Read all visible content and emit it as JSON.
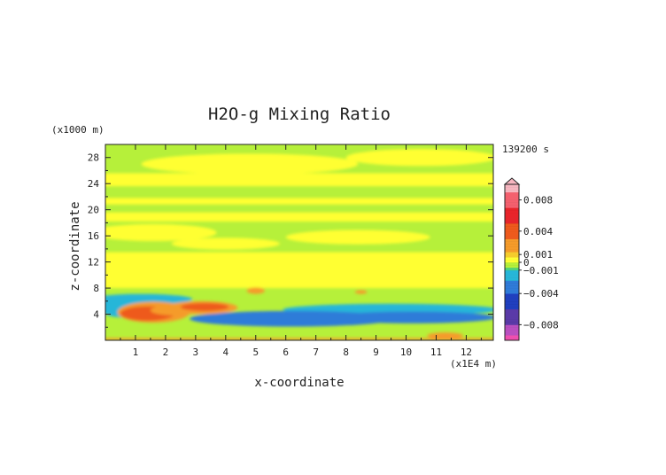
{
  "chart_data": {
    "type": "heatmap",
    "title": "H2O-g Mixing Ratio",
    "xlabel": "x-coordinate",
    "ylabel": "z-coordinate",
    "x_unit_label": "(x1E4 m)",
    "y_unit_label": "(x1000 m)",
    "time_label": "139200 s",
    "xlim": [
      0,
      12.9
    ],
    "ylim": [
      0,
      30
    ],
    "x_ticks": [
      1,
      2,
      3,
      4,
      5,
      6,
      7,
      8,
      9,
      10,
      11,
      12
    ],
    "x_tick_labels": [
      "1",
      "2",
      "3",
      "4",
      "5",
      "6",
      "7",
      "8",
      "9",
      "10",
      "11",
      "12"
    ],
    "y_ticks": [
      4,
      8,
      12,
      16,
      20,
      24,
      28
    ],
    "y_tick_labels": [
      "4",
      "8",
      "12",
      "16",
      "20",
      "24",
      "28"
    ],
    "colorbar": {
      "range": [
        -0.01,
        0.01
      ],
      "tick_values": [
        0.008,
        0.004,
        0.001,
        0,
        -0.001,
        -0.004,
        -0.008
      ],
      "tick_labels": [
        "0.008",
        "0.004",
        "0.001",
        "0",
        "−0.001",
        "−0.004",
        "−0.008"
      ],
      "stops": [
        {
          "value": 0.01,
          "color": "#f7b6c0"
        },
        {
          "value": 0.008,
          "color": "#f4606e"
        },
        {
          "value": 0.006,
          "color": "#e8242a"
        },
        {
          "value": 0.004,
          "color": "#ee5a1c"
        },
        {
          "value": 0.002,
          "color": "#f59b2a"
        },
        {
          "value": 0.001,
          "color": "#f5cc2c"
        },
        {
          "value": 0.0003,
          "color": "#ffff33"
        },
        {
          "value": -0.0003,
          "color": "#b6f03a"
        },
        {
          "value": -0.0008,
          "color": "#4fd37a"
        },
        {
          "value": -0.0015,
          "color": "#26b6d8"
        },
        {
          "value": -0.003,
          "color": "#2f7bd8"
        },
        {
          "value": -0.005,
          "color": "#1f3fbf"
        },
        {
          "value": -0.007,
          "color": "#5a3aa8"
        },
        {
          "value": -0.009,
          "color": "#b94fc0"
        },
        {
          "value": -0.01,
          "color": "#f04fb0"
        }
      ]
    },
    "background_value": -0.0005,
    "regions": [
      {
        "kind": "band",
        "y": [
          18.2,
          19.6
        ],
        "value": 0.0005
      },
      {
        "kind": "band",
        "y": [
          20.8,
          21.8
        ],
        "value": 0.0005
      },
      {
        "kind": "band",
        "y": [
          23.6,
          25.6
        ],
        "value": 0.0005
      },
      {
        "kind": "band",
        "y": [
          8.0,
          13.5
        ],
        "value": 0.0005
      },
      {
        "kind": "blob",
        "x": 4.8,
        "y": 27.0,
        "rx": 3.6,
        "ry": 1.6,
        "value": 0.0005
      },
      {
        "kind": "blob",
        "x": 10.5,
        "y": 28.0,
        "rx": 2.5,
        "ry": 1.3,
        "value": 0.0005
      },
      {
        "kind": "blob",
        "x": 1.6,
        "y": 16.5,
        "rx": 2.1,
        "ry": 1.3,
        "value": 0.0005
      },
      {
        "kind": "blob",
        "x": 8.4,
        "y": 15.8,
        "rx": 2.4,
        "ry": 1.1,
        "value": 0.0005
      },
      {
        "kind": "blob",
        "x": 4.0,
        "y": 14.8,
        "rx": 1.8,
        "ry": 0.9,
        "value": 0.0005
      },
      {
        "kind": "blob",
        "x": 1.2,
        "y": 6.3,
        "rx": 1.7,
        "ry": 0.8,
        "value": -0.0012
      },
      {
        "kind": "blob",
        "x": 0.6,
        "y": 5.0,
        "rx": 0.8,
        "ry": 1.5,
        "value": -0.0012
      },
      {
        "kind": "blob",
        "x": 9.5,
        "y": 4.7,
        "rx": 3.6,
        "ry": 0.9,
        "value": -0.0012
      },
      {
        "kind": "blob",
        "x": 6.2,
        "y": 3.3,
        "rx": 3.4,
        "ry": 1.2,
        "value": -0.0035
      },
      {
        "kind": "blob",
        "x": 10.2,
        "y": 3.5,
        "rx": 2.8,
        "ry": 0.9,
        "value": -0.0035
      },
      {
        "kind": "blob",
        "x": 1.6,
        "y": 4.3,
        "rx": 1.2,
        "ry": 1.6,
        "value": 0.0022
      },
      {
        "kind": "blob",
        "x": 1.4,
        "y": 4.1,
        "rx": 0.9,
        "ry": 1.1,
        "value": 0.0045
      },
      {
        "kind": "blob",
        "x": 2.3,
        "y": 4.6,
        "rx": 0.8,
        "ry": 0.8,
        "value": 0.0022
      },
      {
        "kind": "blob",
        "x": 3.2,
        "y": 5.0,
        "rx": 1.2,
        "ry": 1.0,
        "value": 0.0022
      },
      {
        "kind": "blob",
        "x": 3.3,
        "y": 5.1,
        "rx": 0.8,
        "ry": 0.6,
        "value": 0.0045
      },
      {
        "kind": "blob",
        "x": 5.0,
        "y": 7.6,
        "rx": 0.3,
        "ry": 0.5,
        "value": 0.0022
      },
      {
        "kind": "blob",
        "x": 8.5,
        "y": 7.4,
        "rx": 0.2,
        "ry": 0.3,
        "value": 0.0022
      },
      {
        "kind": "band",
        "y": [
          0,
          0.35
        ],
        "value": 0.0022
      },
      {
        "kind": "blob",
        "x": 11.3,
        "y": 0.7,
        "rx": 0.6,
        "ry": 0.5,
        "value": 0.0022
      }
    ]
  }
}
